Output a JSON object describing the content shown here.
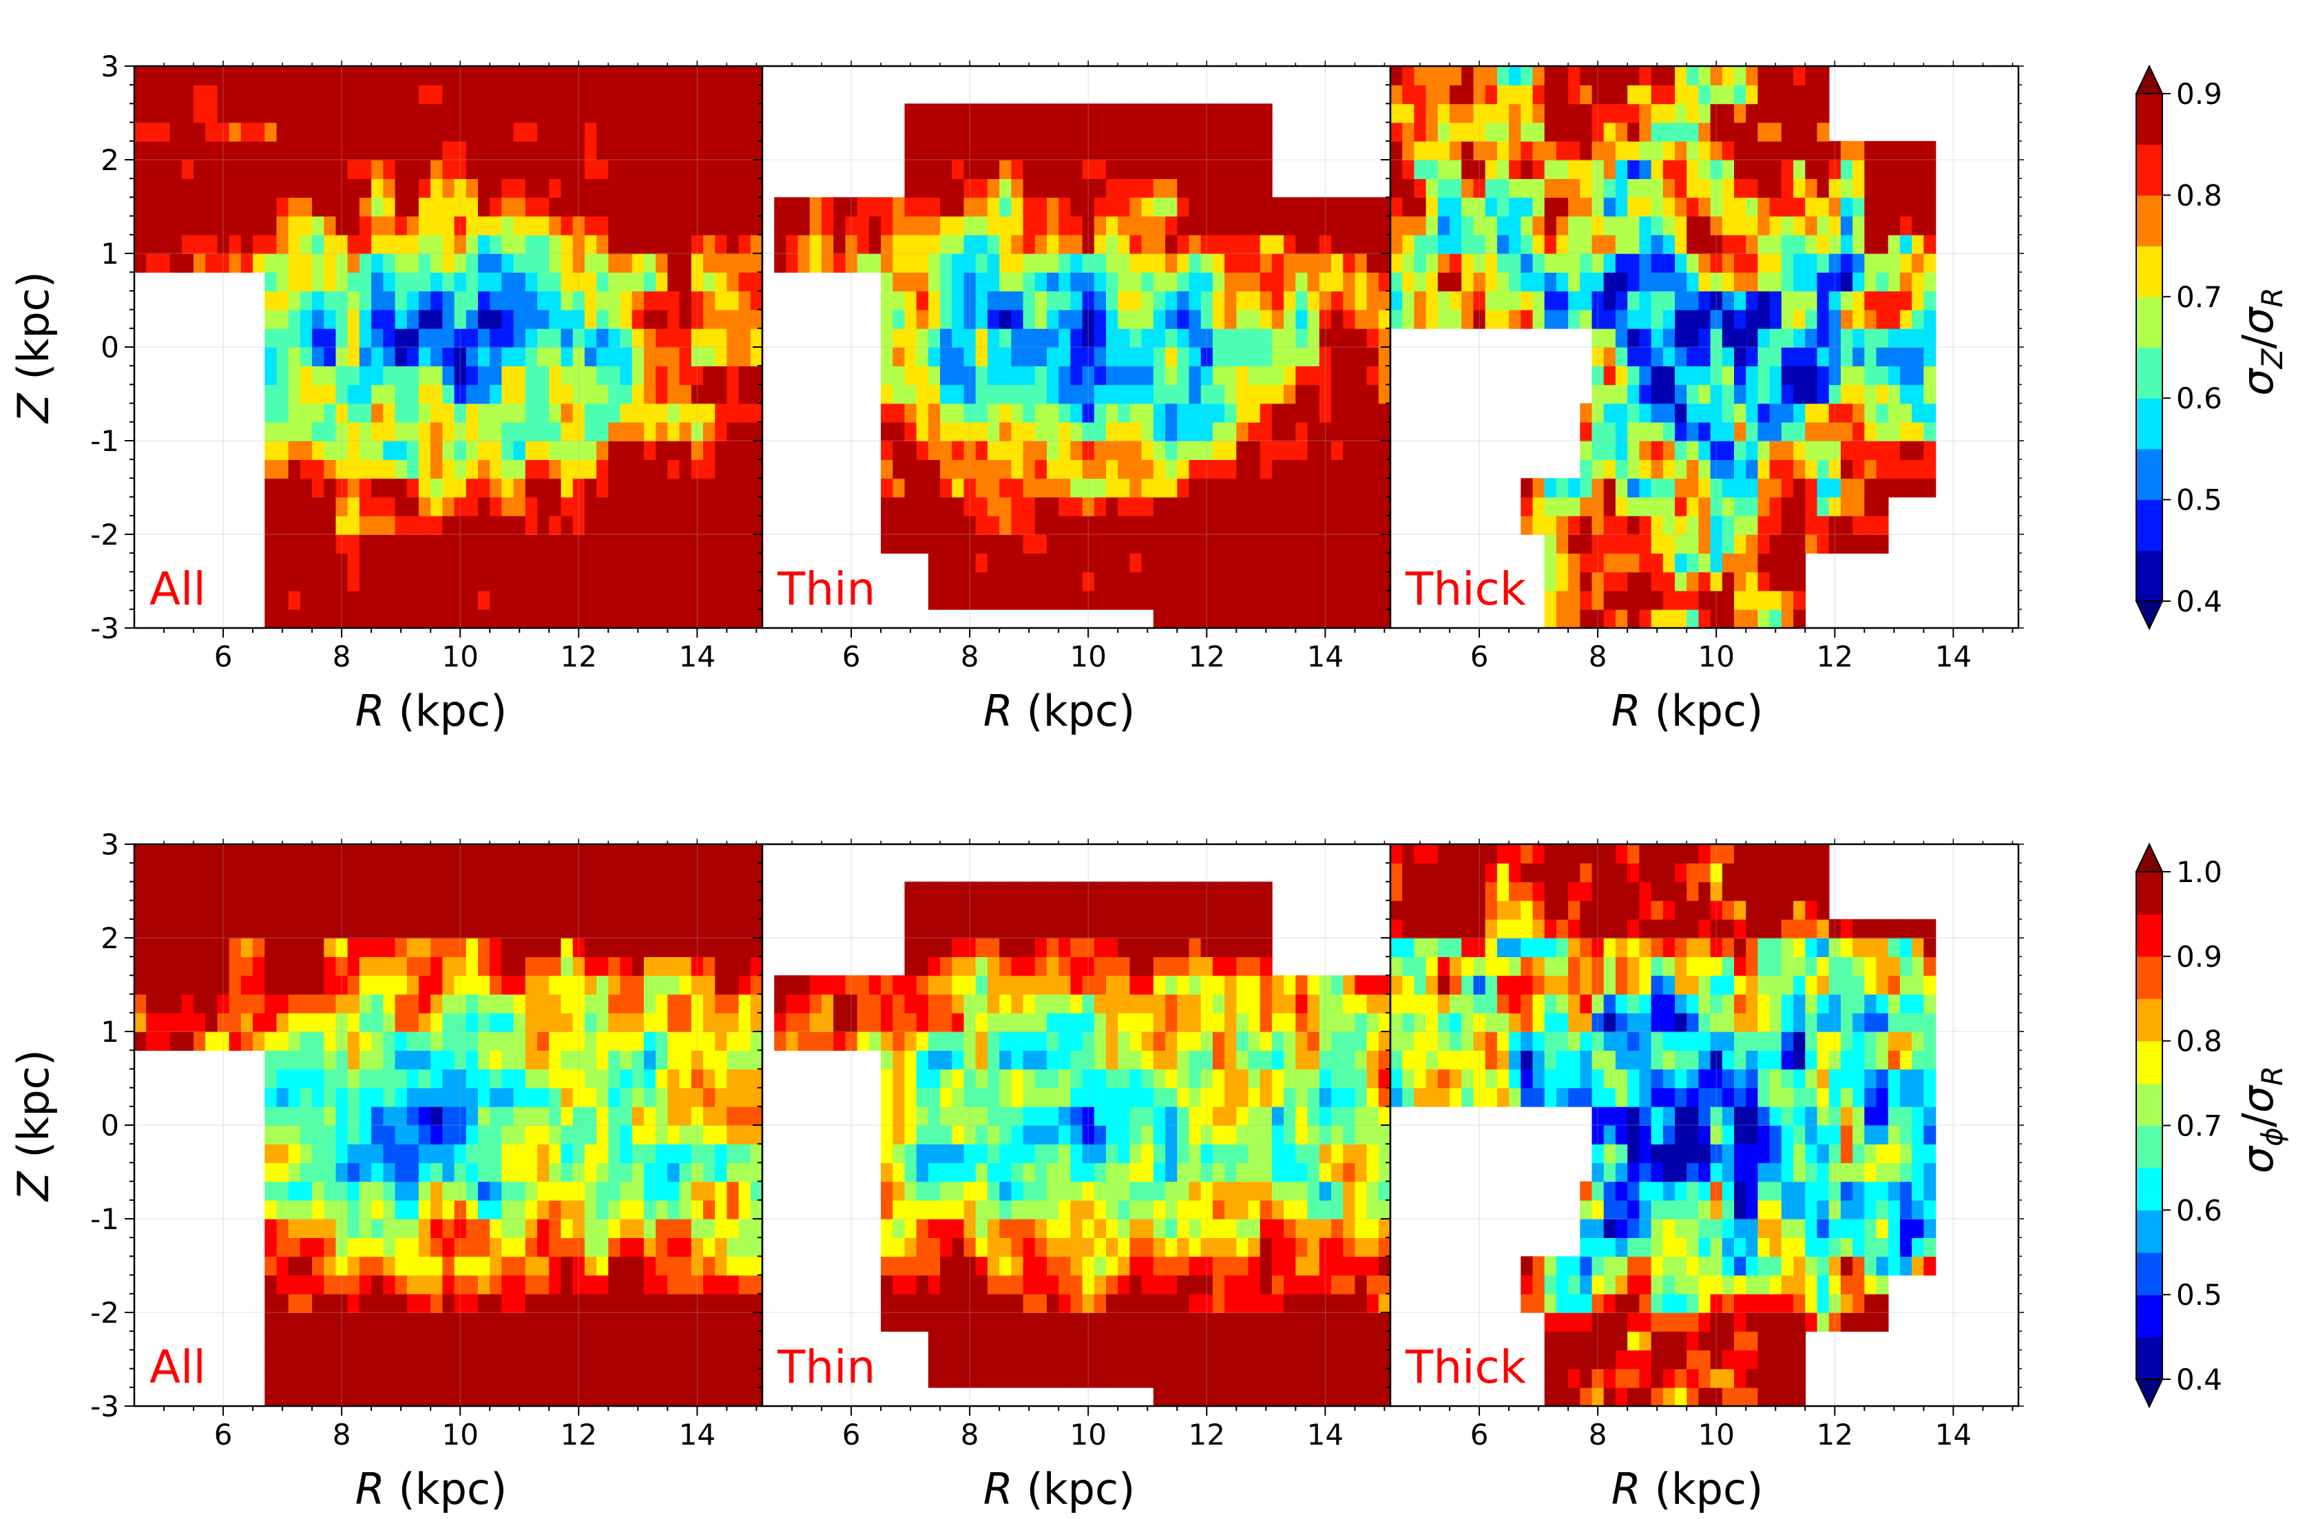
{
  "chart_data": {
    "type": "heatmap",
    "description_rows": [
      {
        "row": "top",
        "colorbar": {
          "label_symbol": "σ",
          "label_sub1": "Z",
          "label_slash": "/",
          "label_sub2": "R",
          "ticks": [
            "0.4",
            "0.5",
            "0.6",
            "0.7",
            "0.8",
            "0.9"
          ],
          "tick_values": [
            0.4,
            0.5,
            0.6,
            0.7,
            0.8,
            0.9
          ],
          "vmin": 0.4,
          "vmax": 0.9
        },
        "panels": [
          {
            "name": "All",
            "label": "All",
            "has_ylabel": true
          },
          {
            "name": "Thin",
            "label": "Thin",
            "has_ylabel": false
          },
          {
            "name": "Thick",
            "label": "Thick",
            "has_ylabel": false
          }
        ]
      },
      {
        "row": "bottom",
        "colorbar": {
          "label_symbol": "σ",
          "label_sub1": "ϕ",
          "label_slash": "/",
          "label_sub2": "R",
          "ticks": [
            "0.4",
            "0.5",
            "0.6",
            "0.7",
            "0.8",
            "0.9",
            "1.0"
          ],
          "tick_values": [
            0.4,
            0.5,
            0.6,
            0.7,
            0.8,
            0.9,
            1.0
          ],
          "vmin": 0.4,
          "vmax": 1.0
        },
        "panels": [
          {
            "name": "All",
            "label": "All",
            "has_ylabel": true
          },
          {
            "name": "Thin",
            "label": "Thin",
            "has_ylabel": false
          },
          {
            "name": "Thick",
            "label": "Thick",
            "has_ylabel": false
          }
        ]
      }
    ],
    "x_axis": {
      "label_var": "R",
      "label_unit": " (kpc)",
      "range": [
        4.5,
        15.1
      ],
      "ticks": [
        6,
        8,
        10,
        12,
        14
      ],
      "tick_labels": [
        "6",
        "8",
        "10",
        "12",
        "14"
      ]
    },
    "y_axis": {
      "label_var": "Z",
      "label_unit": " (kpc)",
      "range": [
        -3,
        3
      ],
      "ticks": [
        -3,
        -2,
        -1,
        0,
        1,
        2,
        3
      ],
      "tick_labels": [
        "-3",
        "-2",
        "-1",
        "0",
        "1",
        "2",
        "3"
      ]
    },
    "grid": true,
    "colormap": "jet",
    "colormap_stops": [
      "#00007f",
      "#0000ff",
      "#007fff",
      "#00ffff",
      "#7fff7f",
      "#ffff00",
      "#ff7f00",
      "#ff0000",
      "#7f0000"
    ],
    "label_color": "#ff0000"
  }
}
